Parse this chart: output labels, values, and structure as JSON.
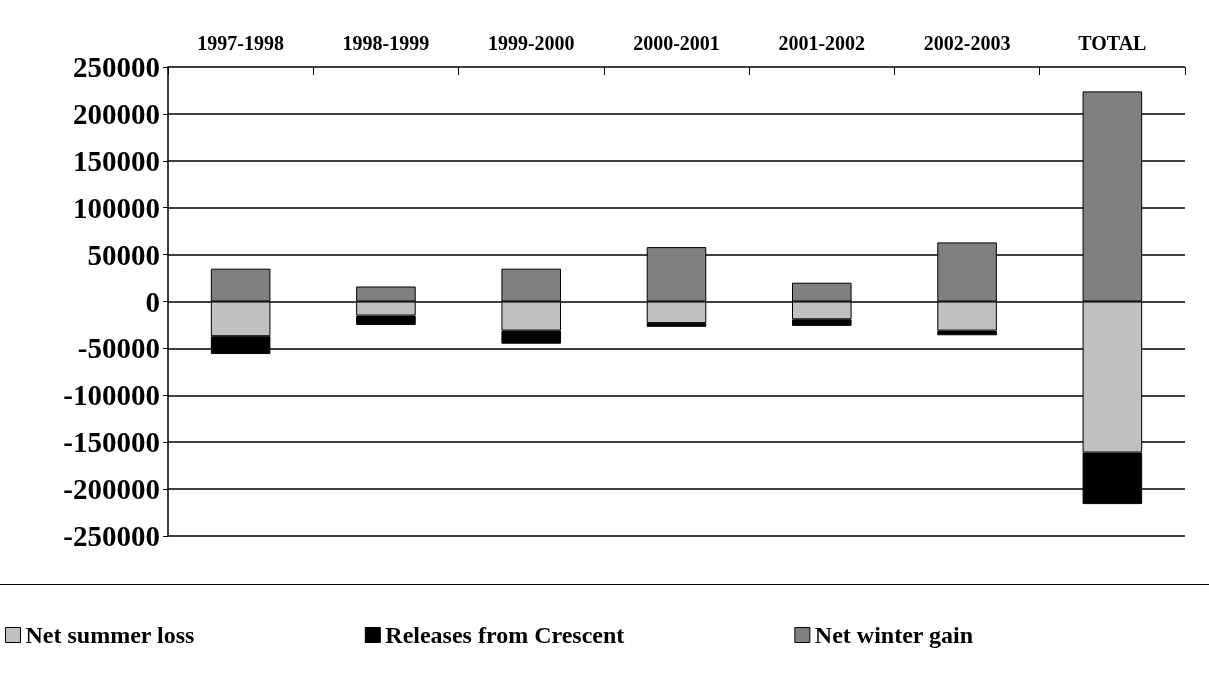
{
  "chart_data": {
    "type": "bar",
    "stacked": true,
    "categories": [
      "1997-1998",
      "1998-1999",
      "1999-2000",
      "2000-2001",
      "2001-2002",
      "2002-2003",
      "TOTAL"
    ],
    "series": [
      {
        "name": "Net summer loss",
        "color": "#c0c0c0",
        "values": [
          -37000,
          -15000,
          -31000,
          -23000,
          -19000,
          -31000,
          -161000
        ]
      },
      {
        "name": "Releases from Crescent",
        "color": "#000000",
        "values": [
          -19000,
          -10000,
          -14000,
          -4000,
          -7000,
          -5000,
          -55000
        ]
      },
      {
        "name": "Net winter gain",
        "color": "#808080",
        "values": [
          35000,
          16000,
          35000,
          58000,
          20000,
          63000,
          224000
        ]
      }
    ],
    "ylim": [
      -250000,
      250000
    ],
    "yticks": [
      -250000,
      -200000,
      -150000,
      -100000,
      -50000,
      0,
      50000,
      100000,
      150000,
      200000,
      250000
    ],
    "grid": "y",
    "legend": "bottom"
  }
}
